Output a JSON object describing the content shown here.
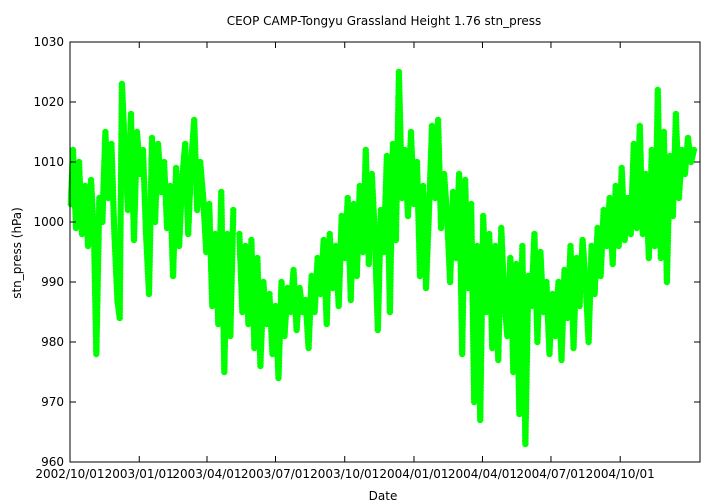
{
  "chart_data": {
    "type": "scatter",
    "title": "CEOP CAMP-Tongyu Grassland Height 1.76 stn_press",
    "xlabel": "Date",
    "ylabel": "stn_press (hPa)",
    "xlim": [
      "2002-10-01",
      "2005-01-15"
    ],
    "ylim": [
      960,
      1030
    ],
    "yticks": [
      960,
      970,
      980,
      990,
      1000,
      1010,
      1020,
      1030
    ],
    "xticks": [
      {
        "date": "2002-10-01",
        "label": "2002/10/01"
      },
      {
        "date": "2003-01-01",
        "label": "2003/01/01"
      },
      {
        "date": "2003-04-01",
        "label": "2003/04/01"
      },
      {
        "date": "2003-07-01",
        "label": "2003/07/01"
      },
      {
        "date": "2003-10-01",
        "label": "2003/10/01"
      },
      {
        "date": "2004-01-01",
        "label": "2004/01/01"
      },
      {
        "date": "2004-04-01",
        "label": "2004/04/01"
      },
      {
        "date": "2004-07-01",
        "label": "2004/07/01"
      },
      {
        "date": "2004-10-01",
        "label": "2004/10/01"
      }
    ],
    "grid": false,
    "legend": "none",
    "marker_color": "#00ff00",
    "series": [
      {
        "points": [
          [
            "2002-10-02",
            1003
          ],
          [
            "2002-10-05",
            1012
          ],
          [
            "2002-10-09",
            999
          ],
          [
            "2002-10-13",
            1010
          ],
          [
            "2002-10-17",
            998
          ],
          [
            "2002-10-21",
            1006
          ],
          [
            "2002-10-25",
            996
          ],
          [
            "2002-10-29",
            1007
          ],
          [
            "2002-11-02",
            997
          ],
          [
            "2002-11-05",
            978
          ],
          [
            "2002-11-09",
            1004
          ],
          [
            "2002-11-13",
            1000
          ],
          [
            "2002-11-17",
            1015
          ],
          [
            "2002-11-21",
            1004
          ],
          [
            "2002-11-25",
            1013
          ],
          [
            "2002-11-29",
            998
          ],
          [
            "2002-12-03",
            987
          ],
          [
            "2002-12-06",
            984
          ],
          [
            "2002-12-09",
            1023
          ],
          [
            "2002-12-13",
            1012
          ],
          [
            "2002-12-17",
            1002
          ],
          [
            "2002-12-21",
            1018
          ],
          [
            "2002-12-25",
            997
          ],
          [
            "2002-12-29",
            1015
          ],
          [
            "2003-01-02",
            1008
          ],
          [
            "2003-01-06",
            1012
          ],
          [
            "2003-01-10",
            998
          ],
          [
            "2003-01-14",
            988
          ],
          [
            "2003-01-18",
            1014
          ],
          [
            "2003-01-22",
            1000
          ],
          [
            "2003-01-26",
            1013
          ],
          [
            "2003-01-30",
            1005
          ],
          [
            "2003-02-03",
            1010
          ],
          [
            "2003-02-07",
            999
          ],
          [
            "2003-02-11",
            1006
          ],
          [
            "2003-02-15",
            991
          ],
          [
            "2003-02-19",
            1009
          ],
          [
            "2003-02-23",
            996
          ],
          [
            "2003-02-27",
            1007
          ],
          [
            "2003-03-03",
            1013
          ],
          [
            "2003-03-07",
            998
          ],
          [
            "2003-03-11",
            1010
          ],
          [
            "2003-03-15",
            1017
          ],
          [
            "2003-03-19",
            1002
          ],
          [
            "2003-03-23",
            1010
          ],
          [
            "2003-03-27",
            1004
          ],
          [
            "2003-03-31",
            995
          ],
          [
            "2003-04-04",
            1003
          ],
          [
            "2003-04-08",
            986
          ],
          [
            "2003-04-12",
            998
          ],
          [
            "2003-04-16",
            983
          ],
          [
            "2003-04-20",
            1005
          ],
          [
            "2003-04-24",
            975
          ],
          [
            "2003-04-28",
            998
          ],
          [
            "2003-05-02",
            981
          ],
          [
            "2003-05-06",
            1002
          ],
          [
            "2003-05-14",
            998
          ],
          [
            "2003-05-18",
            985
          ],
          [
            "2003-05-22",
            996
          ],
          [
            "2003-05-26",
            983
          ],
          [
            "2003-05-30",
            997
          ],
          [
            "2003-06-03",
            979
          ],
          [
            "2003-06-07",
            994
          ],
          [
            "2003-06-11",
            976
          ],
          [
            "2003-06-15",
            990
          ],
          [
            "2003-06-19",
            983
          ],
          [
            "2003-06-23",
            988
          ],
          [
            "2003-06-27",
            978
          ],
          [
            "2003-07-01",
            986
          ],
          [
            "2003-07-05",
            974
          ],
          [
            "2003-07-09",
            990
          ],
          [
            "2003-07-13",
            981
          ],
          [
            "2003-07-17",
            989
          ],
          [
            "2003-07-21",
            985
          ],
          [
            "2003-07-25",
            992
          ],
          [
            "2003-07-29",
            982
          ],
          [
            "2003-08-02",
            989
          ],
          [
            "2003-08-06",
            985
          ],
          [
            "2003-08-10",
            987
          ],
          [
            "2003-08-14",
            979
          ],
          [
            "2003-08-18",
            991
          ],
          [
            "2003-08-22",
            985
          ],
          [
            "2003-08-26",
            994
          ],
          [
            "2003-08-30",
            988
          ],
          [
            "2003-09-03",
            997
          ],
          [
            "2003-09-07",
            983
          ],
          [
            "2003-09-11",
            998
          ],
          [
            "2003-09-15",
            989
          ],
          [
            "2003-09-19",
            996
          ],
          [
            "2003-09-23",
            986
          ],
          [
            "2003-09-27",
            1001
          ],
          [
            "2003-10-01",
            994
          ],
          [
            "2003-10-05",
            1004
          ],
          [
            "2003-10-09",
            987
          ],
          [
            "2003-10-13",
            1003
          ],
          [
            "2003-10-17",
            991
          ],
          [
            "2003-10-21",
            1006
          ],
          [
            "2003-10-25",
            995
          ],
          [
            "2003-10-29",
            1012
          ],
          [
            "2003-11-02",
            993
          ],
          [
            "2003-11-06",
            1008
          ],
          [
            "2003-11-10",
            998
          ],
          [
            "2003-11-14",
            982
          ],
          [
            "2003-11-18",
            1002
          ],
          [
            "2003-11-22",
            995
          ],
          [
            "2003-11-26",
            1011
          ],
          [
            "2003-11-30",
            985
          ],
          [
            "2003-12-04",
            1013
          ],
          [
            "2003-12-08",
            997
          ],
          [
            "2003-12-12",
            1025
          ],
          [
            "2003-12-16",
            1004
          ],
          [
            "2003-12-20",
            1012
          ],
          [
            "2003-12-24",
            1001
          ],
          [
            "2003-12-28",
            1015
          ],
          [
            "2004-01-01",
            1003
          ],
          [
            "2004-01-05",
            1010
          ],
          [
            "2004-01-09",
            991
          ],
          [
            "2004-01-13",
            1006
          ],
          [
            "2004-01-17",
            989
          ],
          [
            "2004-01-21",
            1002
          ],
          [
            "2004-01-25",
            1016
          ],
          [
            "2004-01-29",
            1004
          ],
          [
            "2004-02-02",
            1017
          ],
          [
            "2004-02-06",
            999
          ],
          [
            "2004-02-10",
            1008
          ],
          [
            "2004-02-14",
            1001
          ],
          [
            "2004-02-18",
            990
          ],
          [
            "2004-02-22",
            1005
          ],
          [
            "2004-02-26",
            994
          ],
          [
            "2004-03-01",
            1008
          ],
          [
            "2004-03-05",
            978
          ],
          [
            "2004-03-09",
            1007
          ],
          [
            "2004-03-13",
            989
          ],
          [
            "2004-03-17",
            1003
          ],
          [
            "2004-03-21",
            970
          ],
          [
            "2004-03-25",
            996
          ],
          [
            "2004-03-29",
            967
          ],
          [
            "2004-04-02",
            1001
          ],
          [
            "2004-04-06",
            985
          ],
          [
            "2004-04-10",
            998
          ],
          [
            "2004-04-14",
            979
          ],
          [
            "2004-04-18",
            996
          ],
          [
            "2004-04-22",
            977
          ],
          [
            "2004-04-26",
            999
          ],
          [
            "2004-04-30",
            987
          ],
          [
            "2004-05-04",
            981
          ],
          [
            "2004-05-08",
            994
          ],
          [
            "2004-05-12",
            975
          ],
          [
            "2004-05-16",
            993
          ],
          [
            "2004-05-20",
            968
          ],
          [
            "2004-05-24",
            996
          ],
          [
            "2004-05-28",
            963
          ],
          [
            "2004-06-01",
            991
          ],
          [
            "2004-06-05",
            986
          ],
          [
            "2004-06-09",
            998
          ],
          [
            "2004-06-13",
            980
          ],
          [
            "2004-06-17",
            995
          ],
          [
            "2004-06-21",
            985
          ],
          [
            "2004-06-25",
            990
          ],
          [
            "2004-06-29",
            978
          ],
          [
            "2004-07-03",
            988
          ],
          [
            "2004-07-07",
            981
          ],
          [
            "2004-07-11",
            990
          ],
          [
            "2004-07-15",
            977
          ],
          [
            "2004-07-19",
            992
          ],
          [
            "2004-07-23",
            984
          ],
          [
            "2004-07-27",
            996
          ],
          [
            "2004-07-31",
            979
          ],
          [
            "2004-08-04",
            994
          ],
          [
            "2004-08-08",
            986
          ],
          [
            "2004-08-12",
            997
          ],
          [
            "2004-08-16",
            990
          ],
          [
            "2004-08-20",
            980
          ],
          [
            "2004-08-24",
            996
          ],
          [
            "2004-08-28",
            988
          ],
          [
            "2004-09-01",
            999
          ],
          [
            "2004-09-05",
            991
          ],
          [
            "2004-09-09",
            1002
          ],
          [
            "2004-09-13",
            996
          ],
          [
            "2004-09-17",
            1004
          ],
          [
            "2004-09-21",
            993
          ],
          [
            "2004-09-25",
            1006
          ],
          [
            "2004-09-29",
            996
          ],
          [
            "2004-10-03",
            1009
          ],
          [
            "2004-10-07",
            997
          ],
          [
            "2004-10-11",
            1004
          ],
          [
            "2004-10-15",
            998
          ],
          [
            "2004-10-19",
            1013
          ],
          [
            "2004-10-23",
            999
          ],
          [
            "2004-10-27",
            1016
          ],
          [
            "2004-10-31",
            998
          ],
          [
            "2004-11-04",
            1008
          ],
          [
            "2004-11-08",
            994
          ],
          [
            "2004-11-12",
            1012
          ],
          [
            "2004-11-16",
            996
          ],
          [
            "2004-11-20",
            1022
          ],
          [
            "2004-11-24",
            994
          ],
          [
            "2004-11-28",
            1015
          ],
          [
            "2004-12-02",
            990
          ],
          [
            "2004-12-06",
            1011
          ],
          [
            "2004-12-10",
            1001
          ],
          [
            "2004-12-14",
            1018
          ],
          [
            "2004-12-18",
            1004
          ],
          [
            "2004-12-22",
            1012
          ],
          [
            "2004-12-26",
            1008
          ],
          [
            "2004-12-30",
            1014
          ],
          [
            "2005-01-03",
            1010
          ],
          [
            "2005-01-07",
            1012
          ]
        ]
      }
    ]
  }
}
